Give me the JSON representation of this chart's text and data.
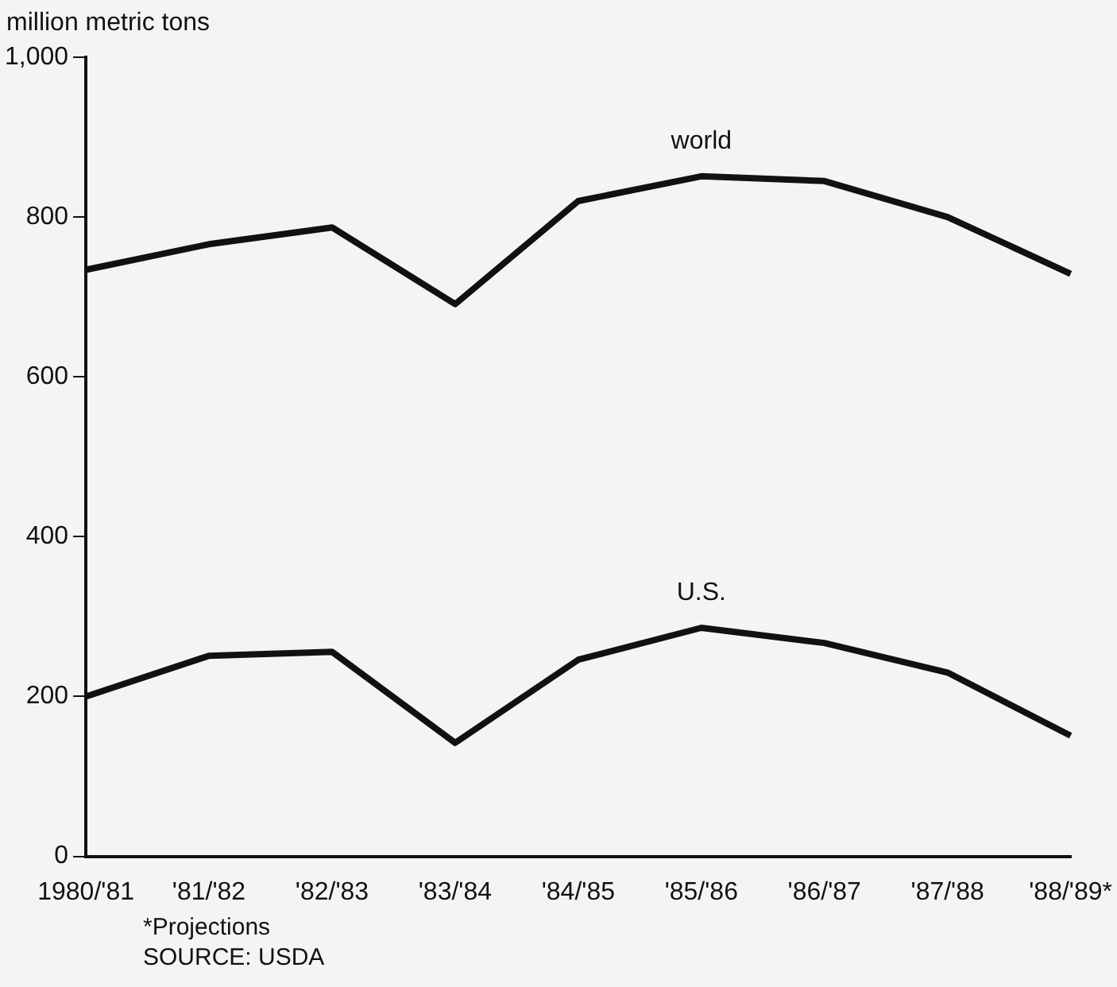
{
  "chart_data": {
    "type": "line",
    "ylabel": "million metric tons",
    "categories": [
      "1980/'81",
      "'81/'82",
      "'82/'83",
      "'83/'84",
      "'84/'85",
      "'85/'86",
      "'86/'87",
      "'87/'88",
      "'88/'89*"
    ],
    "series": [
      {
        "name": "world",
        "color": "#111111",
        "values": [
          734,
          766,
          787,
          691,
          820,
          851,
          845,
          800,
          729
        ]
      },
      {
        "name": "U.S.",
        "color": "#111111",
        "values": [
          200,
          251,
          256,
          142,
          246,
          286,
          267,
          230,
          151
        ]
      }
    ],
    "ylim": [
      0,
      1000
    ],
    "yticks": [
      0,
      200,
      400,
      600,
      800,
      {
        "value": 1000,
        "label": "1,000"
      }
    ],
    "grid": false,
    "legend": false,
    "marker": "none",
    "line_style": "solid",
    "annotations": [
      "*Projections",
      "SOURCE: USDA"
    ]
  }
}
